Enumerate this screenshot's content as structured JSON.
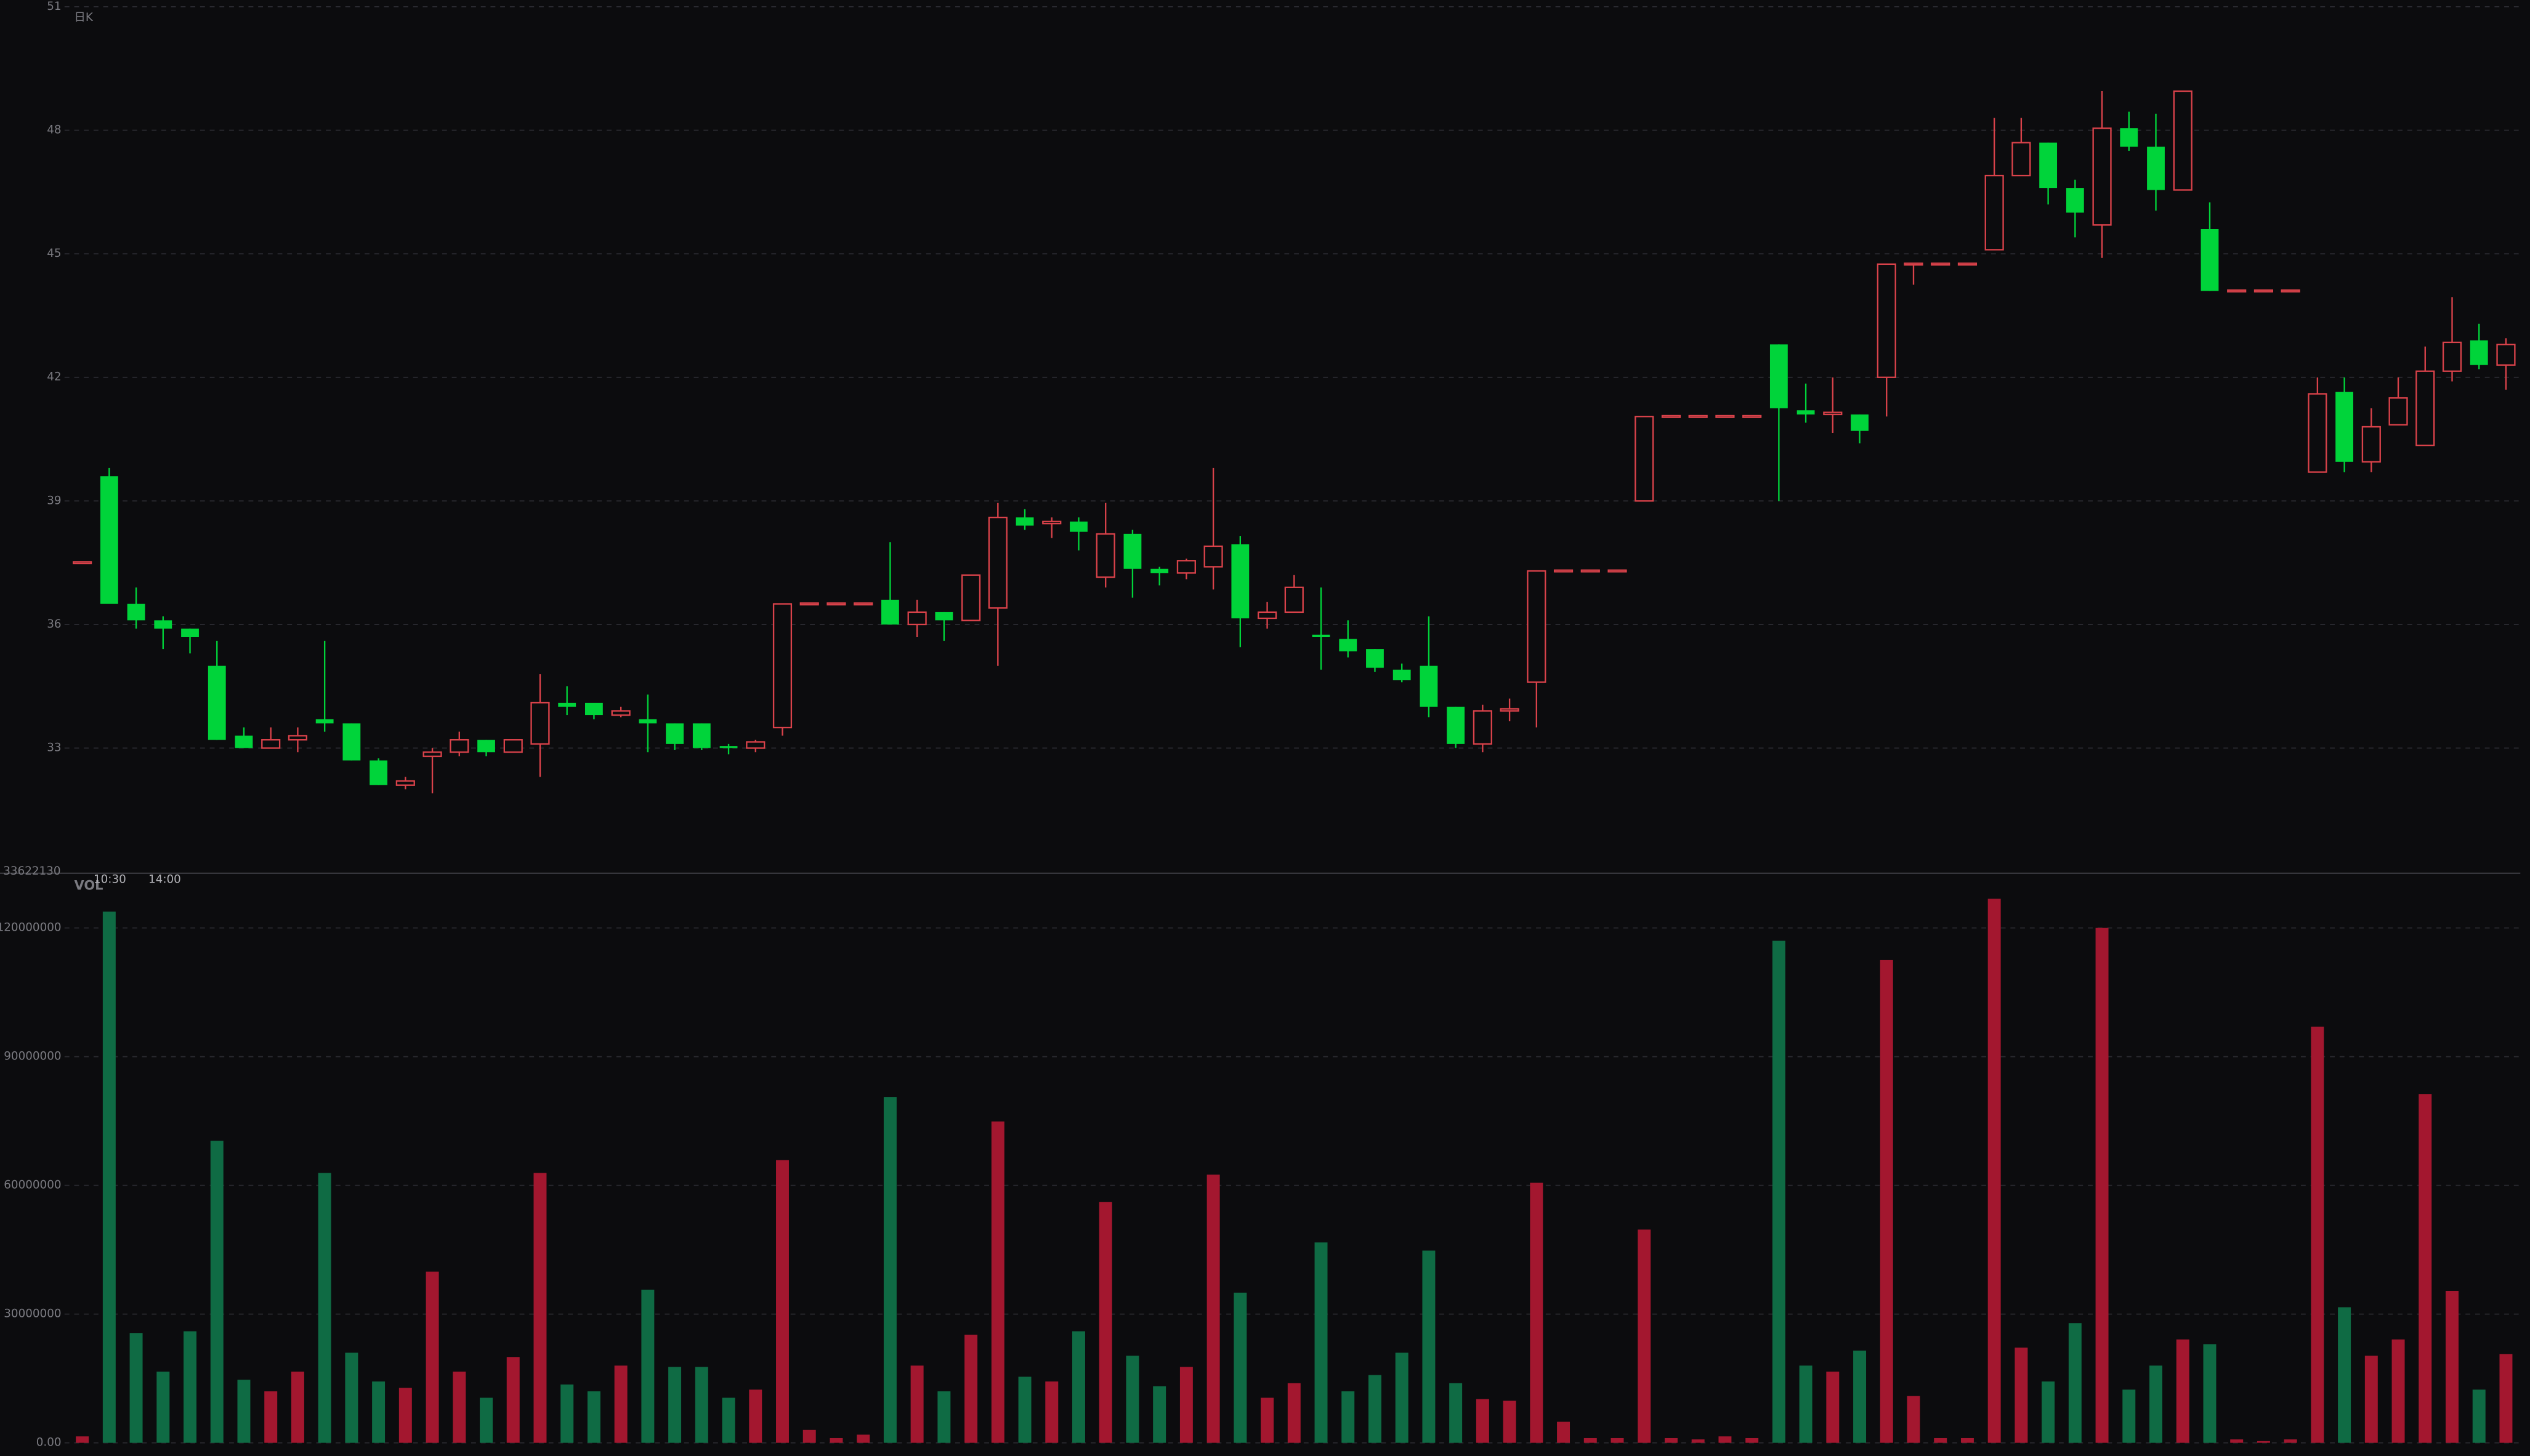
{
  "chart_data": [
    {
      "type": "candlestick",
      "label": "日K",
      "ylim": [
        30,
        51
      ],
      "yticks": [
        33,
        36,
        39,
        42,
        45,
        48,
        51
      ],
      "grid": true,
      "up_color": "#d9424a",
      "down_color": "#00d43a",
      "open": [
        37.5,
        39.6,
        36.5,
        36.1,
        35.9,
        35.0,
        33.3,
        33.0,
        33.2,
        33.7,
        33.6,
        32.7,
        32.1,
        32.8,
        32.9,
        33.2,
        32.9,
        33.1,
        34.1,
        34.1,
        33.8,
        33.7,
        33.6,
        33.6,
        33.05,
        33.0,
        33.5,
        36.5,
        36.5,
        36.5,
        36.6,
        36.0,
        36.3,
        36.1,
        36.4,
        38.6,
        38.45,
        38.5,
        37.15,
        38.2,
        37.35,
        37.25,
        37.4,
        37.95,
        36.15,
        36.3,
        35.75,
        35.65,
        35.4,
        34.9,
        35.0,
        34.0,
        33.1,
        33.9,
        34.6,
        37.3,
        37.3,
        37.3,
        39.0,
        41.05,
        41.05,
        41.05,
        41.05,
        42.8,
        41.2,
        41.1,
        41.1,
        42.0,
        44.75,
        44.75,
        44.75,
        45.1,
        46.9,
        47.7,
        46.6,
        45.7,
        48.05,
        47.6,
        46.55,
        45.6,
        44.1,
        44.1,
        44.1,
        39.7,
        41.65,
        39.95,
        40.85,
        40.35,
        42.15,
        42.9,
        42.3
      ],
      "high": [
        37.5,
        39.8,
        36.9,
        36.2,
        35.9,
        35.6,
        33.5,
        33.5,
        33.5,
        35.6,
        33.6,
        32.75,
        32.3,
        33.0,
        33.4,
        33.2,
        33.2,
        34.8,
        34.5,
        34.1,
        34.0,
        34.3,
        33.6,
        33.6,
        33.1,
        33.2,
        36.5,
        36.5,
        36.5,
        36.5,
        38.0,
        36.6,
        36.3,
        37.2,
        38.95,
        38.8,
        38.6,
        38.6,
        38.95,
        38.3,
        37.4,
        37.6,
        39.8,
        38.15,
        36.55,
        37.2,
        36.9,
        36.1,
        35.4,
        35.05,
        36.2,
        34.0,
        34.05,
        34.2,
        37.3,
        37.3,
        37.3,
        37.3,
        41.05,
        41.05,
        41.05,
        41.05,
        41.05,
        42.8,
        41.85,
        42.0,
        41.1,
        44.75,
        44.75,
        44.75,
        44.75,
        48.3,
        48.3,
        47.7,
        46.8,
        48.95,
        48.45,
        48.4,
        48.95,
        46.25,
        44.1,
        44.1,
        44.1,
        42.0,
        42.0,
        41.25,
        42.0,
        42.75,
        43.95,
        43.3,
        42.95
      ],
      "low": [
        37.5,
        36.5,
        35.9,
        35.4,
        35.3,
        33.2,
        33.0,
        33.0,
        32.9,
        33.4,
        32.7,
        32.1,
        32.0,
        31.9,
        32.8,
        32.8,
        32.9,
        32.3,
        33.8,
        33.7,
        33.75,
        32.9,
        32.95,
        32.95,
        32.85,
        32.9,
        33.3,
        36.5,
        36.5,
        36.5,
        36.0,
        35.7,
        35.6,
        36.1,
        35.0,
        38.3,
        38.1,
        37.8,
        36.9,
        36.65,
        36.95,
        37.1,
        36.85,
        35.45,
        35.9,
        36.3,
        34.9,
        35.2,
        34.85,
        34.6,
        33.75,
        33.0,
        32.9,
        33.65,
        33.5,
        37.3,
        37.3,
        37.3,
        39.0,
        41.05,
        41.05,
        41.05,
        41.05,
        39.0,
        40.9,
        40.65,
        40.4,
        41.05,
        44.25,
        44.75,
        44.75,
        45.1,
        46.9,
        46.2,
        45.4,
        44.9,
        47.5,
        46.05,
        46.55,
        44.1,
        44.1,
        44.1,
        44.1,
        39.7,
        39.7,
        39.7,
        41.0,
        40.35,
        41.9,
        42.2,
        41.7
      ],
      "close": [
        37.5,
        36.5,
        36.1,
        35.9,
        35.7,
        33.2,
        33.0,
        33.2,
        33.3,
        33.6,
        32.7,
        32.1,
        32.2,
        32.9,
        33.2,
        32.9,
        33.2,
        34.1,
        34.0,
        33.8,
        33.9,
        33.6,
        33.1,
        33.0,
        33.0,
        33.15,
        36.5,
        36.5,
        36.5,
        36.5,
        36.0,
        36.3,
        36.1,
        37.2,
        38.6,
        38.4,
        38.5,
        38.25,
        38.2,
        37.35,
        37.25,
        37.55,
        37.9,
        36.15,
        36.3,
        36.9,
        35.7,
        35.35,
        34.95,
        34.65,
        34.0,
        33.1,
        33.9,
        33.95,
        37.3,
        37.3,
        37.3,
        37.3,
        41.05,
        41.05,
        41.05,
        41.05,
        41.05,
        41.25,
        41.1,
        41.15,
        40.7,
        44.75,
        44.75,
        44.75,
        44.75,
        46.9,
        47.7,
        46.6,
        46.0,
        48.05,
        47.6,
        46.55,
        48.95,
        44.1,
        44.1,
        44.1,
        44.1,
        41.6,
        39.95,
        40.8,
        41.5,
        42.15,
        42.85,
        42.3,
        42.8
      ]
    },
    {
      "type": "bar",
      "label": "VOL",
      "header_value": 33622130,
      "time_labels": [
        "10:30",
        "14:00"
      ],
      "ylim": [
        0,
        132000000
      ],
      "yticks": [
        {
          "value": 0,
          "label": "0.00"
        },
        30000000,
        60000000,
        90000000,
        120000000
      ],
      "grid": true,
      "up_color": "#a3172f",
      "down_color": "#0f6b44",
      "values": [
        1500000,
        123800000,
        25600000,
        16600000,
        26000000,
        70400000,
        14700000,
        12000000,
        16600000,
        62900000,
        21000000,
        14300000,
        12800000,
        39900000,
        16600000,
        10500000,
        20000000,
        62900000,
        13600000,
        12000000,
        18000000,
        35700000,
        17700000,
        17700000,
        10500000,
        12400000,
        65900000,
        3000000,
        1100000,
        1900000,
        80600000,
        18000000,
        12000000,
        25200000,
        74900000,
        15400000,
        14300000,
        26000000,
        56100000,
        20300000,
        13200000,
        17700000,
        62500000,
        35000000,
        10500000,
        13900000,
        46700000,
        12000000,
        15800000,
        21000000,
        44800000,
        13900000,
        10200000,
        9800000,
        60600000,
        4900000,
        1100000,
        1100000,
        49700000,
        1100000,
        800000,
        1500000,
        1100000,
        117000000,
        18000000,
        16600000,
        21500000,
        112500000,
        10900000,
        1100000,
        1100000,
        126800000,
        22200000,
        14300000,
        27900000,
        120000000,
        12400000,
        18000000,
        24100000,
        23000000,
        800000,
        400000,
        800000,
        97000000,
        31600000,
        20300000,
        24100000,
        81300000,
        35400000,
        12400000,
        20700000
      ]
    }
  ]
}
